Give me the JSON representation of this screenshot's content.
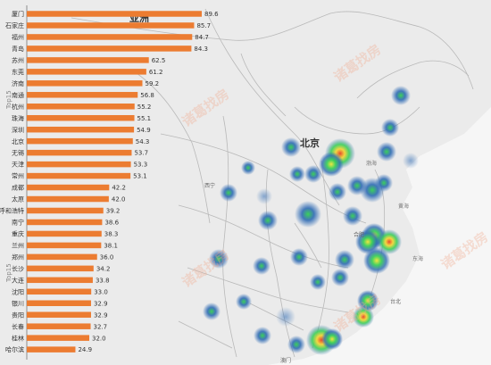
{
  "chart_data": {
    "type": "bar",
    "orientation": "horizontal",
    "bar_color": "#ec7c31",
    "categories": [
      "厦门",
      "石家庄",
      "福州",
      "青岛",
      "苏州",
      "东莞",
      "济南",
      "南通",
      "杭州",
      "珠海",
      "深圳",
      "北京",
      "无锡",
      "天津",
      "常州",
      "成都",
      "太原",
      "呼和浩特",
      "南宁",
      "重庆",
      "兰州",
      "郑州",
      "长沙",
      "大连",
      "沈阳",
      "银川",
      "贵阳",
      "长春",
      "桂林",
      "哈尔滨"
    ],
    "values": [
      89.6,
      85.7,
      84.7,
      84.3,
      62.5,
      61.2,
      59.2,
      56.8,
      55.2,
      55.1,
      54.9,
      54.3,
      53.7,
      53.3,
      53.1,
      42.2,
      42.0,
      39.2,
      38.6,
      38.3,
      38.1,
      36.0,
      34.2,
      33.8,
      33.0,
      32.9,
      32.9,
      32.7,
      32.0,
      24.9
    ],
    "side_labels": [
      "Top15",
      "Top15"
    ]
  },
  "map": {
    "watermark": "诸葛找房",
    "region_labels": {
      "asia": "亚洲",
      "beijing": "北京",
      "bohai": "渤海",
      "huanghai": "黄海",
      "donghai": "东海",
      "hefei": "合肥",
      "taibei": "台北",
      "macau": "澳门",
      "xining": "西宁"
    },
    "heat_color_low": "#2f6bb4",
    "heat_color_mid": "#3bd05a",
    "heat_color_high": "#e84a2c"
  }
}
